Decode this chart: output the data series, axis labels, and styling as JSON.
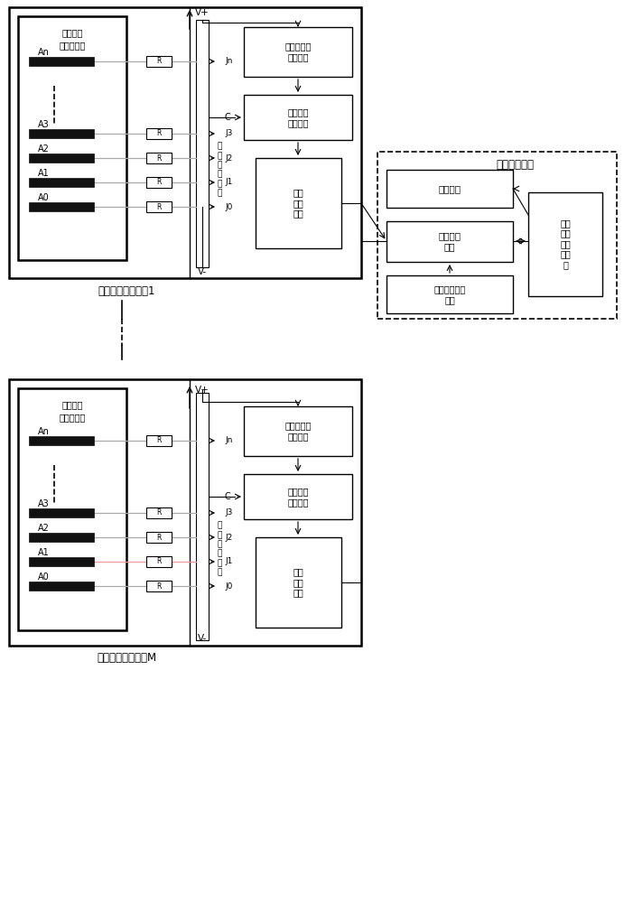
{
  "bg_color": "#ffffff",
  "figure_size": [
    6.91,
    10.0
  ],
  "dpi": 100,
  "label_device1": "积水检测终端设备1",
  "label_deviceM": "积水检测终端设备M",
  "label_center": "中心处理单元",
  "label_sensor": "积水高度\n判断传感器",
  "label_Vplus": "V+",
  "label_Vminus": "V-",
  "label_C": "C",
  "label_switch_matrix_ctrl": "转换开关矩\n阵控制器",
  "label_judge_unit": "判断分析\n处理单元",
  "label_data_output": "数据\n输出\n单元",
  "label_switch_matrix": "转\n换\n开\n关\n矩\n阵",
  "label_display": "显示模块",
  "label_data_proc": "数据处理\n模块",
  "label_clock_sync": "时钟同步控制\n模块",
  "label_terminal_db": "终端\n设备\n信息\n数据\n库",
  "resistor_label": "R"
}
